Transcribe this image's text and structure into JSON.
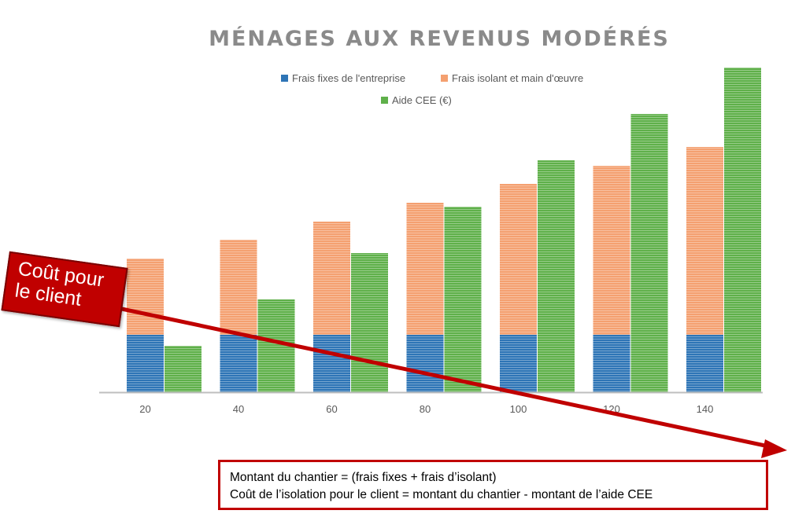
{
  "chart_data": {
    "type": "bar",
    "stacked_series_group": "cost",
    "title": "MÉNAGES AUX REVENUS MODÉRÉS",
    "categories": [
      "20",
      "40",
      "60",
      "80",
      "100",
      "120",
      "140"
    ],
    "series": [
      {
        "name": "Frais fixes de l'entreprise",
        "stack": "cost",
        "color": "#2e75b6",
        "values": [
          73,
          73,
          73,
          73,
          73,
          73,
          73
        ]
      },
      {
        "name": "Frais isolant et main d'œuvre",
        "stack": "cost",
        "color": "#f4a070",
        "values": [
          97,
          121,
          144,
          168,
          192,
          215,
          239
        ]
      },
      {
        "name": "Aide CEE (€)",
        "stack": "aid",
        "color": "#5fb04a",
        "values": [
          59,
          118,
          177,
          236,
          295,
          354,
          413
        ]
      }
    ],
    "xlabel": "",
    "ylabel": "",
    "ylim": [
      0,
      420
    ],
    "grid": false,
    "legend_position": "top"
  },
  "annotations": {
    "client_label": "Coût pour le client",
    "formula_line1": "Montant du chantier = (frais fixes + frais d’isolant)",
    "formula_line2": "Coût de l’isolation pour le client = montant du chantier - montant de l’aide CEE"
  },
  "colors": {
    "accent": "#c00000"
  }
}
